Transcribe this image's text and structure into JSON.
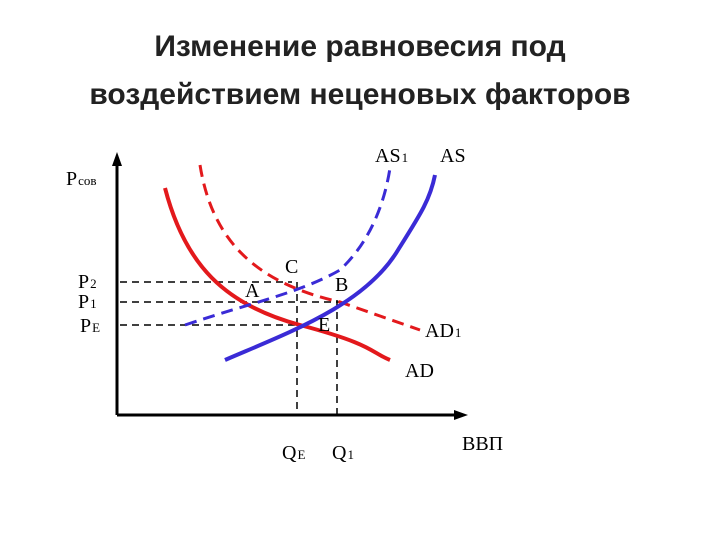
{
  "title": [
    "Изменение равновесия под",
    "воздействием неценовых факторов"
  ],
  "axes": {
    "y": {
      "main": "P",
      "sub": "сов"
    },
    "x": "ВВП"
  },
  "price_levels": [
    {
      "main": "P",
      "sub": "2"
    },
    {
      "main": "P",
      "sub": "1"
    },
    {
      "main": "P",
      "sub": "E"
    }
  ],
  "quantities": [
    {
      "main": "Q",
      "sub": "E"
    },
    {
      "main": "Q",
      "sub": "1"
    }
  ],
  "curves": [
    {
      "main": "AS",
      "sub": "1"
    },
    {
      "main": "AS",
      "sub": ""
    },
    {
      "main": "AD",
      "sub": "1"
    },
    {
      "main": "AD",
      "sub": ""
    }
  ],
  "points": [
    "A",
    "C",
    "B",
    "E"
  ]
}
